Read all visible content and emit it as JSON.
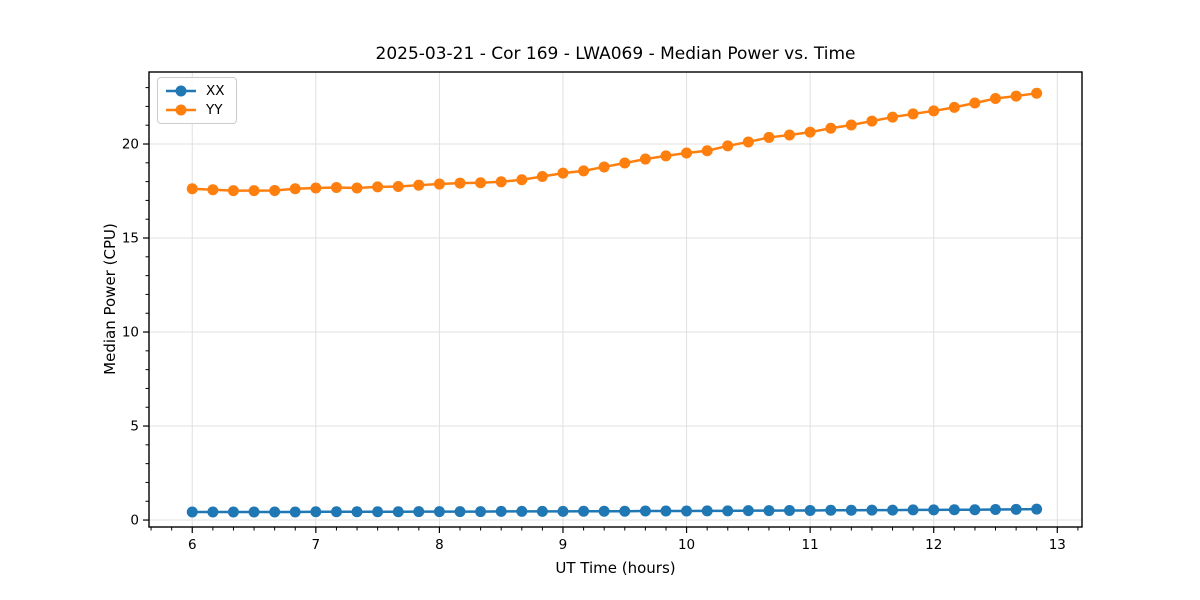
{
  "chart_data": {
    "type": "line",
    "title": "2025-03-21 - Cor 169 - LWA069 - Median Power vs. Time",
    "xlabel": "UT Time (hours)",
    "ylabel": "Median Power (CPU)",
    "x": [
      6.0,
      6.167,
      6.333,
      6.5,
      6.667,
      6.833,
      7.0,
      7.167,
      7.333,
      7.5,
      7.667,
      7.833,
      8.0,
      8.167,
      8.333,
      8.5,
      8.667,
      8.833,
      9.0,
      9.167,
      9.333,
      9.5,
      9.667,
      9.833,
      10.0,
      10.167,
      10.333,
      10.5,
      10.667,
      10.833,
      11.0,
      11.167,
      11.333,
      11.5,
      11.667,
      11.833,
      12.0,
      12.167,
      12.333,
      12.5,
      12.667,
      12.833
    ],
    "series": [
      {
        "name": "XX",
        "color": "#1f77b4",
        "values": [
          0.43,
          0.43,
          0.43,
          0.43,
          0.43,
          0.43,
          0.44,
          0.44,
          0.44,
          0.44,
          0.44,
          0.45,
          0.45,
          0.45,
          0.45,
          0.46,
          0.46,
          0.46,
          0.46,
          0.47,
          0.47,
          0.47,
          0.48,
          0.48,
          0.48,
          0.49,
          0.49,
          0.5,
          0.5,
          0.51,
          0.51,
          0.52,
          0.52,
          0.53,
          0.53,
          0.54,
          0.54,
          0.55,
          0.55,
          0.56,
          0.57,
          0.58
        ]
      },
      {
        "name": "YY",
        "color": "#ff7f0e",
        "values": [
          17.62,
          17.57,
          17.52,
          17.52,
          17.53,
          17.62,
          17.66,
          17.69,
          17.66,
          17.72,
          17.74,
          17.81,
          17.87,
          17.92,
          17.94,
          17.99,
          18.1,
          18.27,
          18.45,
          18.57,
          18.78,
          18.99,
          19.2,
          19.37,
          19.52,
          19.64,
          19.9,
          20.11,
          20.35,
          20.48,
          20.63,
          20.84,
          21.01,
          21.22,
          21.43,
          21.6,
          21.76,
          21.95,
          22.18,
          22.42,
          22.55,
          22.7
        ]
      }
    ],
    "xlim": [
      5.65,
      13.2
    ],
    "ylim": [
      -0.37,
      23.83
    ],
    "xticks": [
      6,
      7,
      8,
      9,
      10,
      11,
      12,
      13
    ],
    "yticks": [
      0,
      5,
      10,
      15,
      20
    ],
    "x_minor_step": 0.16667,
    "y_minor_step": 1,
    "grid": true,
    "grid_color": "#e0e0e0",
    "spine_color": "#000000",
    "legend_position": "upper-left",
    "marker": "circle",
    "marker_radius": 5.5,
    "line_width": 2.5
  }
}
